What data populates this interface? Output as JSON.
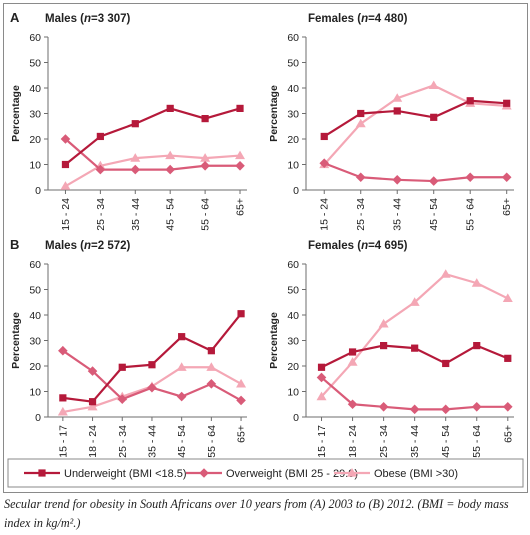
{
  "colors": {
    "underweight": "#b5193a",
    "overweight": "#d95b78",
    "obese": "#f4a7b5",
    "axis": "#6d6d6d",
    "text": "#222222"
  },
  "legend": {
    "items": [
      {
        "label": "Underweight (BMI <18.5)",
        "marker": "square",
        "series": "underweight"
      },
      {
        "label": "Overweight (BMI 25 - 29.9)",
        "marker": "diamond",
        "series": "overweight"
      },
      {
        "label": "Obese (BMI >30)",
        "marker": "triangle",
        "series": "obese"
      }
    ]
  },
  "caption": "Secular trend for obesity in South Africans over 10 years from (A) 2003 to (B) 2012. (BMI = body mass index in kg/m².)",
  "chart_data": [
    {
      "type": "line",
      "panel": "A",
      "group": "Males",
      "n": "3 307",
      "ylabel": "Percentage",
      "ylim": [
        0,
        60
      ],
      "yticks": [
        0,
        10,
        20,
        30,
        40,
        50,
        60
      ],
      "categories": [
        "15 - 24",
        "25 - 34",
        "35 - 44",
        "45 - 54",
        "55 - 64",
        "65+"
      ],
      "series": [
        {
          "name": "Underweight (BMI <18.5)",
          "key": "underweight",
          "values": [
            10,
            21,
            26,
            32,
            28,
            32
          ]
        },
        {
          "name": "Overweight (BMI 25 - 29.9)",
          "key": "overweight",
          "values": [
            20,
            8,
            8,
            8,
            9.5,
            9.5
          ]
        },
        {
          "name": "Obese (BMI >30)",
          "key": "obese",
          "values": [
            1.5,
            9.5,
            12.5,
            13.5,
            12.5,
            13.5
          ]
        }
      ]
    },
    {
      "type": "line",
      "panel": "",
      "group": "Females",
      "n": "4 480",
      "ylabel": "Percentage",
      "ylim": [
        0,
        60
      ],
      "yticks": [
        0,
        10,
        20,
        30,
        40,
        50,
        60
      ],
      "categories": [
        "15 - 24",
        "25 - 34",
        "35 - 44",
        "45 - 54",
        "55 - 64",
        "65+"
      ],
      "series": [
        {
          "name": "Underweight (BMI <18.5)",
          "key": "underweight",
          "values": [
            21,
            30,
            31,
            28.5,
            35,
            34
          ]
        },
        {
          "name": "Overweight (BMI 25 - 29.9)",
          "key": "overweight",
          "values": [
            10.5,
            5,
            4,
            3.5,
            5,
            5
          ]
        },
        {
          "name": "Obese (BMI >30)",
          "key": "obese",
          "values": [
            10,
            26,
            36,
            41,
            34,
            33
          ]
        }
      ]
    },
    {
      "type": "line",
      "panel": "B",
      "group": "Males",
      "n": "2 572",
      "ylabel": "Percentage",
      "ylim": [
        0,
        60
      ],
      "yticks": [
        0,
        10,
        20,
        30,
        40,
        50,
        60
      ],
      "categories": [
        "15 - 17",
        "18 - 24",
        "25 - 34",
        "35 - 44",
        "45 - 54",
        "55 - 64",
        "65+"
      ],
      "series": [
        {
          "name": "Underweight (BMI <18.5)",
          "key": "underweight",
          "values": [
            7.5,
            6,
            19.5,
            20.5,
            31.5,
            26,
            40.5
          ]
        },
        {
          "name": "Overweight (BMI 25 - 29.9)",
          "key": "overweight",
          "values": [
            26,
            18,
            7,
            11.5,
            8,
            13,
            6.5
          ]
        },
        {
          "name": "Obese (BMI >30)",
          "key": "obese",
          "values": [
            2,
            4,
            8,
            12,
            19.5,
            19.5,
            13
          ]
        }
      ]
    },
    {
      "type": "line",
      "panel": "",
      "group": "Females",
      "n": "4 695",
      "ylabel": "Percentage",
      "ylim": [
        0,
        60
      ],
      "yticks": [
        0,
        10,
        20,
        30,
        40,
        50,
        60
      ],
      "categories": [
        "15 - 17",
        "18 - 24",
        "25 - 34",
        "35 - 44",
        "45 - 54",
        "55 - 64",
        "65+"
      ],
      "series": [
        {
          "name": "Underweight (BMI <18.5)",
          "key": "underweight",
          "values": [
            19.5,
            25.5,
            28,
            27,
            21,
            28,
            23
          ]
        },
        {
          "name": "Overweight (BMI 25 - 29.9)",
          "key": "overweight",
          "values": [
            15.5,
            5,
            4,
            3,
            3,
            4,
            4
          ]
        },
        {
          "name": "Obese (BMI >30)",
          "key": "obese",
          "values": [
            8,
            21.5,
            36.5,
            45,
            56,
            52.5,
            46.5
          ]
        }
      ]
    }
  ]
}
